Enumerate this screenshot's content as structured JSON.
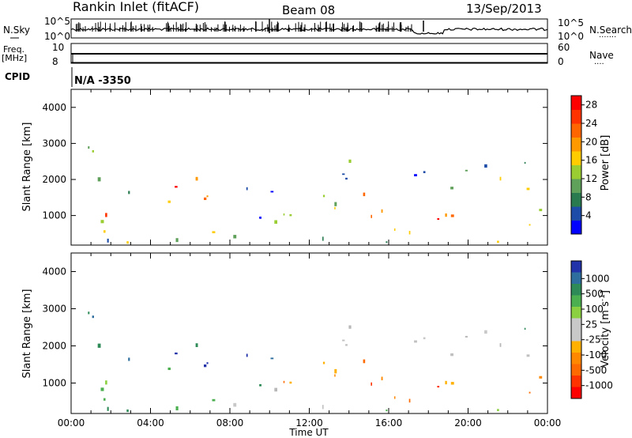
{
  "header": {
    "station": "Rankin Inlet (fitACF)",
    "beam": "Beam 08",
    "date": "13/Sep/2013"
  },
  "summary_panels": {
    "nsky_label": "N.Sky",
    "nsearch_label": "N.Search",
    "nsky_ticks": [
      "10^5",
      "10^0"
    ],
    "nsearch_ticks": [
      "10^5",
      "10^0"
    ],
    "freq_label": "Freq.",
    "freq_unit": "[MHz]",
    "freq_ticks": [
      "10",
      "8"
    ],
    "nave_label": "Nave",
    "nave_ticks": [
      "60",
      "0"
    ],
    "cpid_label": "CPID",
    "cpid_value": "N/A -3350",
    "dots": "·······",
    "dots_short": "····"
  },
  "chart_data": [
    {
      "type": "heatmap",
      "name": "power",
      "ylabel": "Slant Range [km]",
      "xlabel": "",
      "x_ticks": [
        "00:00",
        "04:00",
        "08:00",
        "12:00",
        "16:00",
        "20:00",
        "00:00"
      ],
      "x_range_hours": [
        0,
        24
      ],
      "y_ticks": [
        "1000",
        "2000",
        "3000",
        "4000"
      ],
      "y_range_km": [
        180,
        4500
      ],
      "colorbar": {
        "label": "Power [dB]",
        "ticks": [
          "4",
          "8",
          "12",
          "16",
          "20",
          "24",
          "28"
        ],
        "range": [
          0,
          30
        ],
        "colors": [
          "#0000ff",
          "#1c4ca8",
          "#2a7a50",
          "#5fa05a",
          "#9acd32",
          "#ffcc00",
          "#ff9900",
          "#ff6600",
          "#ff3300",
          "#ff0000"
        ]
      }
    },
    {
      "type": "heatmap",
      "name": "velocity",
      "ylabel": "Slant Range [km]",
      "xlabel": "Time UT",
      "x_ticks": [
        "00:00",
        "04:00",
        "08:00",
        "12:00",
        "16:00",
        "20:00",
        "00:00"
      ],
      "x_range_hours": [
        0,
        24
      ],
      "y_ticks": [
        "1000",
        "2000",
        "3000",
        "4000"
      ],
      "y_range_km": [
        180,
        4500
      ],
      "colorbar": {
        "label": "Velocity [m s",
        "label_sup": "-1",
        "label_end": "]",
        "ticks": [
          "1000",
          "500",
          "100",
          "25",
          "-25",
          "-100",
          "-500",
          "-1000"
        ],
        "colors": [
          "#2233aa",
          "#2e6e9e",
          "#2e8b57",
          "#4caf50",
          "#8bd040",
          "#c8c8c8",
          "#c8c8c8",
          "#ffb000",
          "#ff8800",
          "#ff6a00",
          "#ff3300",
          "#ff0000"
        ]
      }
    }
  ],
  "colors": {
    "ground_scatter": "#c0c0c0"
  }
}
